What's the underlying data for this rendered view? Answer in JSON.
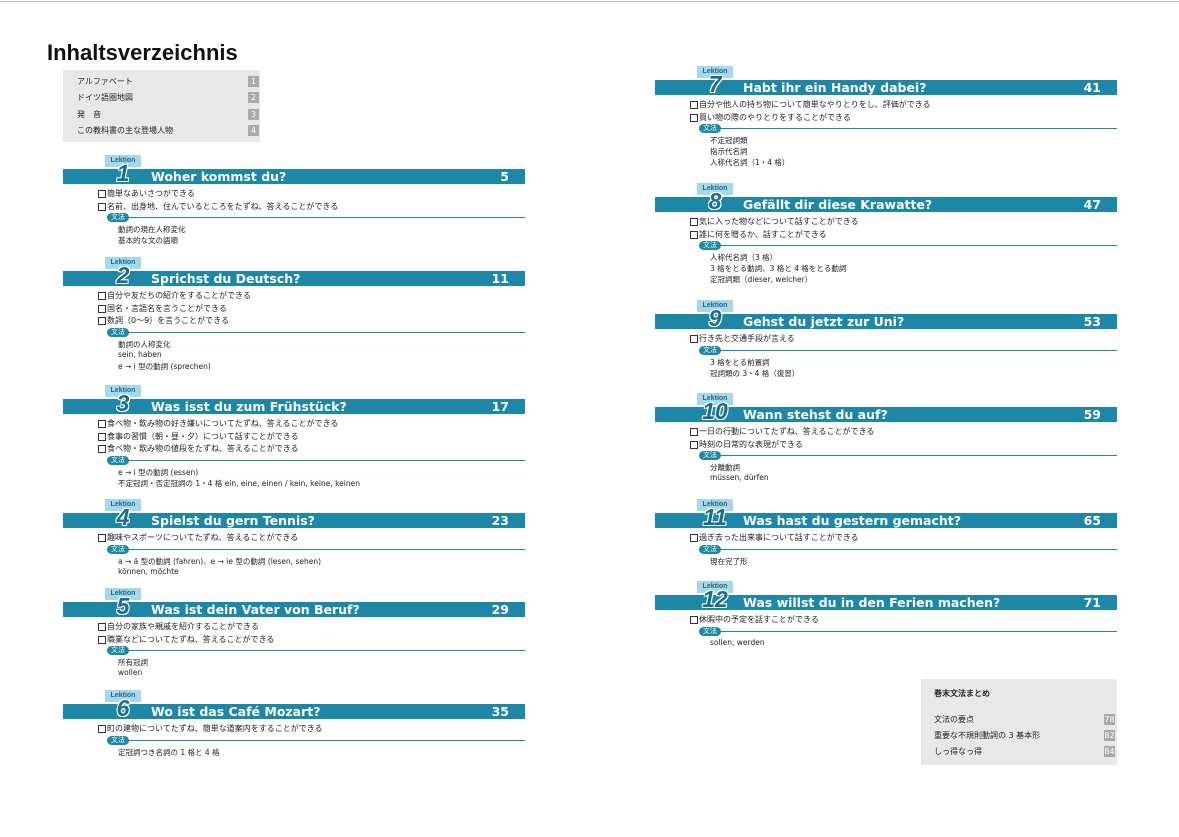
{
  "title": "Inhaltsverzeichnis",
  "lektion_label": "Lektion",
  "grammar_label": "文法",
  "intro": [
    {
      "label": "アルファベート",
      "page": "1"
    },
    {
      "label": "ドイツ語圏地図",
      "page": "2"
    },
    {
      "label": "発　音",
      "page": "3"
    },
    {
      "label": "この教科書の主な登場人物",
      "page": "4"
    }
  ],
  "lessons": [
    {
      "number": "1",
      "title": "Woher kommst du?",
      "page": "5",
      "goals": [
        "簡単なあいさつができる",
        "名前、出身地、住んでいるところをたずね、答えることができる"
      ],
      "grammar": [
        "動詞の現在人称変化",
        "基本的な文の語順"
      ]
    },
    {
      "number": "2",
      "title": "Sprichst du Deutsch?",
      "page": "11",
      "goals": [
        "自分や友だちの紹介をすることができる",
        "国名・言語名を言うことができる",
        "数詞（0～9）を言うことができる"
      ],
      "grammar": [
        "動詞の人称変化",
        "sein, haben",
        "e → i 型の動詞 (sprechen)"
      ]
    },
    {
      "number": "3",
      "title": "Was isst du zum Frühstück?",
      "page": "17",
      "goals": [
        "食べ物・飲み物の好き嫌いについてたずね、答えることができる",
        "食事の習慣（朝・昼・夕）について話すことができる",
        "食べ物・飲み物の値段をたずね、答えることができる"
      ],
      "grammar": [
        "e → i 型の動詞 (essen)",
        "不定冠詞・否定冠詞の 1・4 格 ein, eine, einen / kein, keine, keinen"
      ]
    },
    {
      "number": "4",
      "title": "Spielst du gern Tennis?",
      "page": "23",
      "goals": [
        "趣味やスポーツについてたずね、答えることができる"
      ],
      "grammar": [
        "a → ä 型の動詞 (fahren)、e → ie 型の動詞 (lesen, sehen)",
        "können, möchte"
      ]
    },
    {
      "number": "5",
      "title": "Was ist dein Vater von Beruf?",
      "page": "29",
      "goals": [
        "自分の家族や親戚を紹介することができる",
        "職業などについてたずね、答えることができる"
      ],
      "grammar": [
        "所有冠詞",
        "wollen"
      ]
    },
    {
      "number": "6",
      "title": "Wo ist das Café Mozart?",
      "page": "35",
      "goals": [
        "町の建物についてたずね、簡単な道案内をすることができる"
      ],
      "grammar": [
        "定冠詞つき名詞の 1 格と 4 格"
      ]
    },
    {
      "number": "7",
      "title": "Habt ihr ein Handy dabei?",
      "page": "41",
      "goals": [
        "自分や他人の持ち物について簡単なやりとりをし、評価ができる",
        "買い物の際のやりとりをすることができる"
      ],
      "grammar": [
        "不定冠詞類",
        "指示代名詞",
        "人称代名詞（1・4 格）"
      ]
    },
    {
      "number": "8",
      "title": "Gefällt dir diese Krawatte?",
      "page": "47",
      "goals": [
        "気に入った物などについて話すことができる",
        "誰に何を贈るか、話すことができる"
      ],
      "grammar": [
        "人称代名詞（3 格）",
        "3 格をとる動詞、3 格と 4 格をとる動詞",
        "定冠詞類（dieser, welcher）"
      ]
    },
    {
      "number": "9",
      "title": "Gehst du jetzt zur Uni?",
      "page": "53",
      "goals": [
        "行き先と交通手段が言える"
      ],
      "grammar": [
        "3 格をとる前置詞",
        "冠詞類の 3・4 格（復習）"
      ]
    },
    {
      "number": "10",
      "title": "Wann stehst du auf?",
      "page": "59",
      "goals": [
        "一日の行動についてたずね、答えることができる",
        "時刻の日常的な表現ができる"
      ],
      "grammar": [
        "分離動詞",
        "müssen, dürfen"
      ]
    },
    {
      "number": "11",
      "title": "Was hast du gestern gemacht?",
      "page": "65",
      "goals": [
        "過ぎ去った出来事について話すことができる"
      ],
      "grammar": [
        "現在完了形"
      ]
    },
    {
      "number": "12",
      "title": "Was willst du in den Ferien machen?",
      "page": "71",
      "goals": [
        "休暇中の予定を話すことができる"
      ],
      "grammar": [
        "sollen, werden"
      ]
    }
  ],
  "appendix": {
    "title": "巻末文法まとめ",
    "items": [
      {
        "label": "文法の要点",
        "page": "78"
      },
      {
        "label": "重要な不規則動詞の 3 基本形",
        "page": "82"
      },
      {
        "label": "しっ得なっ得",
        "page": "84"
      }
    ]
  }
}
